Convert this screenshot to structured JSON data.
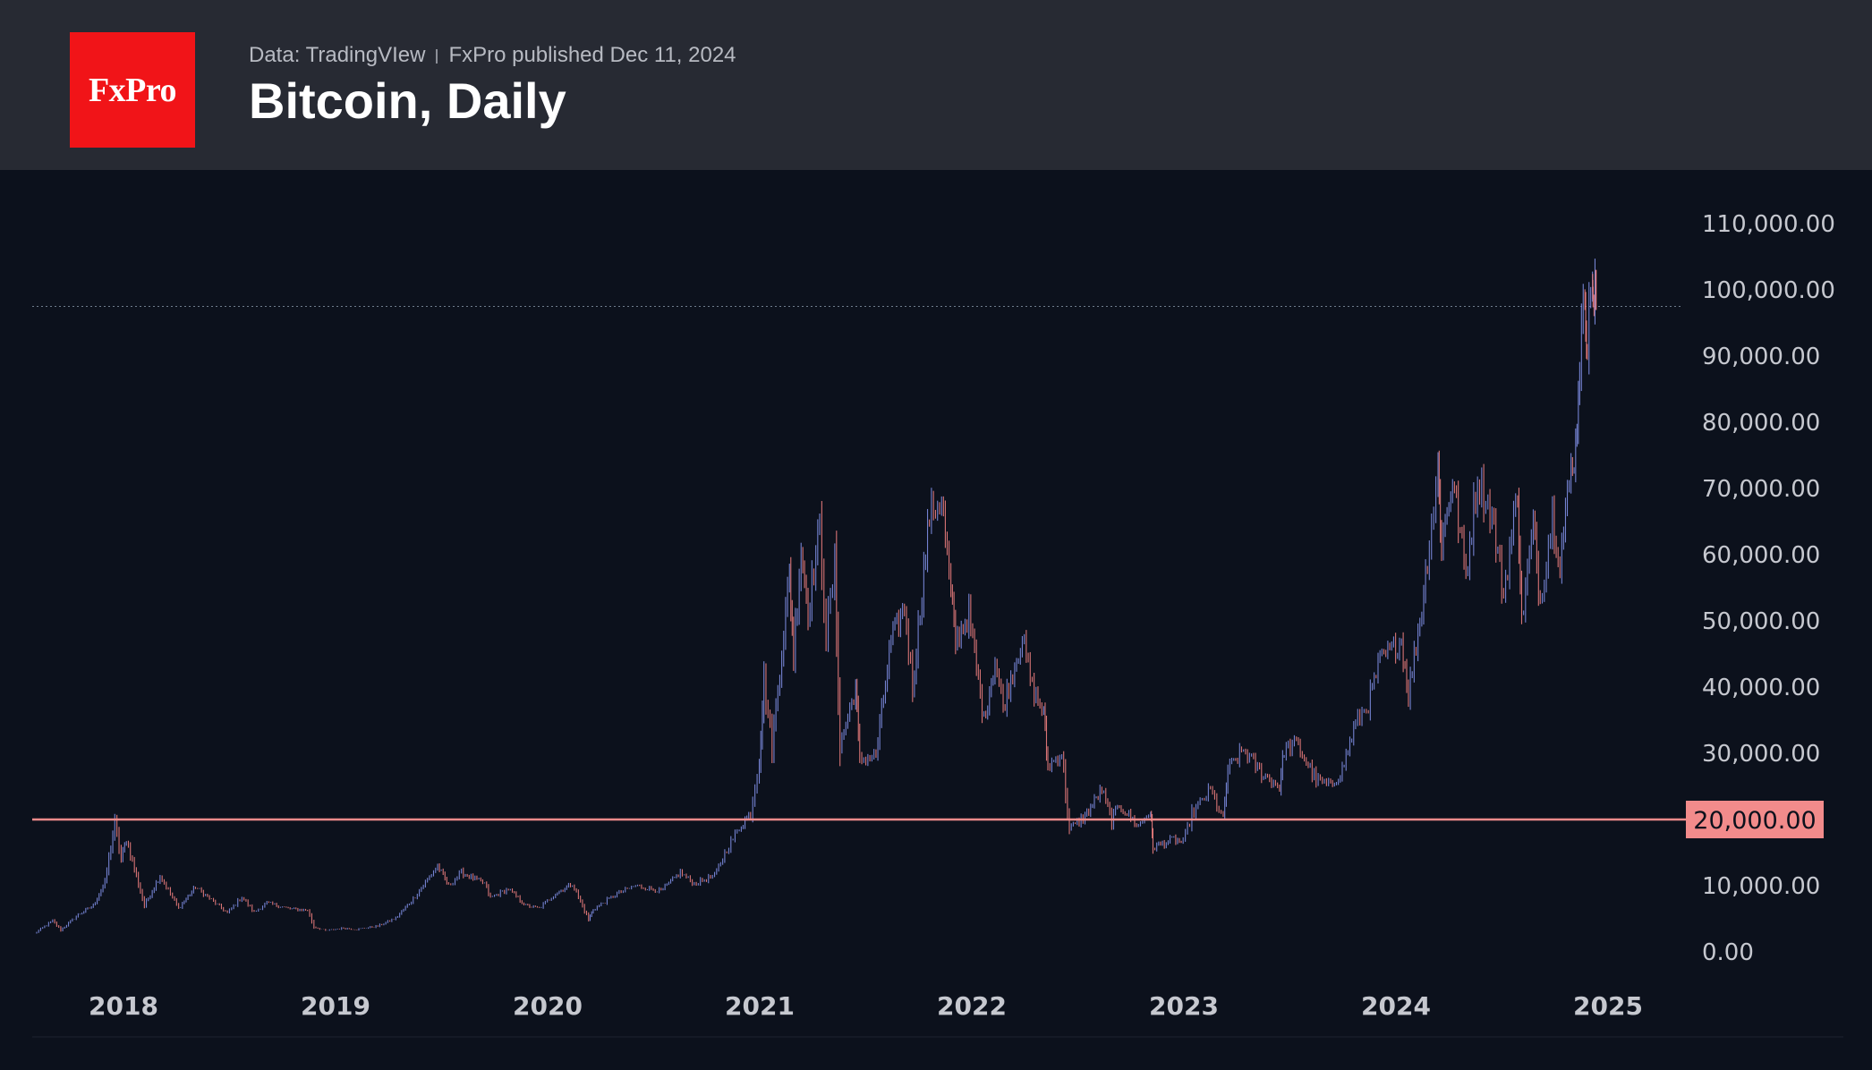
{
  "header": {
    "logo_text": "FxPro",
    "source": "Data: TradingVIew",
    "published": "FxPro published Dec 11, 2024",
    "title": "Bitcoin, Daily"
  },
  "colors": {
    "header_bg": "#272a33",
    "chart_bg": "#0c111c",
    "logo_bg": "#f11418",
    "series_up": "#7f8fe6",
    "series_down": "#f07f80",
    "level_line": "#f28b8b",
    "axis_text": "#c6c8cf"
  },
  "chart_data": {
    "type": "line",
    "title": "Bitcoin, Daily",
    "x_ticks": [
      "2018",
      "2019",
      "2020",
      "2021",
      "2022",
      "2023",
      "2024",
      "2025"
    ],
    "y_ticks": [
      "0.00",
      "10,000.00",
      "20,000.00",
      "30,000.00",
      "40,000.00",
      "50,000.00",
      "60,000.00",
      "70,000.00",
      "80,000.00",
      "90,000.00",
      "100,000.00",
      "110,000.00"
    ],
    "ylim": [
      0,
      120000
    ],
    "grid": false,
    "horizontal_level": {
      "value": 20000,
      "label": "20,000.00"
    },
    "dotted_level": {
      "value": 97500
    },
    "series": [
      {
        "values_note_free": true,
        "points": [
          [
            "2017-08-01",
            2800
          ],
          [
            "2017-09-01",
            4700
          ],
          [
            "2017-09-15",
            3300
          ],
          [
            "2017-10-15",
            5600
          ],
          [
            "2017-11-10",
            7000
          ],
          [
            "2017-11-30",
            10500
          ],
          [
            "2017-12-17",
            19500
          ],
          [
            "2017-12-28",
            14000
          ],
          [
            "2018-01-06",
            17000
          ],
          [
            "2018-02-06",
            7000
          ],
          [
            "2018-03-05",
            11500
          ],
          [
            "2018-04-06",
            6600
          ],
          [
            "2018-05-05",
            9800
          ],
          [
            "2018-06-29",
            5900
          ],
          [
            "2018-07-24",
            8300
          ],
          [
            "2018-08-14",
            6000
          ],
          [
            "2018-09-05",
            7400
          ],
          [
            "2018-10-15",
            6500
          ],
          [
            "2018-11-14",
            6300
          ],
          [
            "2018-11-25",
            3800
          ],
          [
            "2018-12-15",
            3200
          ],
          [
            "2019-01-15",
            3600
          ],
          [
            "2019-02-07",
            3400
          ],
          [
            "2019-03-15",
            3900
          ],
          [
            "2019-04-15",
            5100
          ],
          [
            "2019-05-15",
            8000
          ],
          [
            "2019-06-26",
            13000
          ],
          [
            "2019-07-15",
            10000
          ],
          [
            "2019-08-06",
            12000
          ],
          [
            "2019-09-15",
            10300
          ],
          [
            "2019-09-25",
            8200
          ],
          [
            "2019-10-26",
            9500
          ],
          [
            "2019-11-25",
            7000
          ],
          [
            "2019-12-18",
            6600
          ],
          [
            "2020-01-15",
            8800
          ],
          [
            "2020-02-13",
            10300
          ],
          [
            "2020-03-12",
            4900
          ],
          [
            "2020-03-20",
            6400
          ],
          [
            "2020-04-30",
            8800
          ],
          [
            "2020-06-01",
            10000
          ],
          [
            "2020-07-15",
            9200
          ],
          [
            "2020-08-17",
            12000
          ],
          [
            "2020-09-10",
            10300
          ],
          [
            "2020-10-15",
            11500
          ],
          [
            "2020-11-05",
            15500
          ],
          [
            "2020-11-30",
            19200
          ],
          [
            "2020-12-16",
            21000
          ],
          [
            "2020-12-31",
            29000
          ],
          [
            "2021-01-08",
            41000
          ],
          [
            "2021-01-22",
            31000
          ],
          [
            "2021-02-21",
            57000
          ],
          [
            "2021-02-28",
            45000
          ],
          [
            "2021-03-13",
            61000
          ],
          [
            "2021-03-25",
            51500
          ],
          [
            "2021-04-14",
            64000
          ],
          [
            "2021-04-25",
            48000
          ],
          [
            "2021-05-10",
            58000
          ],
          [
            "2021-05-19",
            31000
          ],
          [
            "2021-06-15",
            40000
          ],
          [
            "2021-06-22",
            29000
          ],
          [
            "2021-07-20",
            29700
          ],
          [
            "2021-08-15",
            47000
          ],
          [
            "2021-09-07",
            52000
          ],
          [
            "2021-09-21",
            40000
          ],
          [
            "2021-10-20",
            66000
          ],
          [
            "2021-11-10",
            68500
          ],
          [
            "2021-11-26",
            54000
          ],
          [
            "2021-12-04",
            47000
          ],
          [
            "2021-12-27",
            51000
          ],
          [
            "2022-01-22",
            35000
          ],
          [
            "2022-02-10",
            44000
          ],
          [
            "2022-02-24",
            37000
          ],
          [
            "2022-03-29",
            47500
          ],
          [
            "2022-04-15",
            40000
          ],
          [
            "2022-05-05",
            36000
          ],
          [
            "2022-05-12",
            28000
          ],
          [
            "2022-06-05",
            30000
          ],
          [
            "2022-06-18",
            18500
          ],
          [
            "2022-07-15",
            20500
          ],
          [
            "2022-08-13",
            24500
          ],
          [
            "2022-08-30",
            19800
          ],
          [
            "2022-09-12",
            22200
          ],
          [
            "2022-10-15",
            19000
          ],
          [
            "2022-11-05",
            21300
          ],
          [
            "2022-11-09",
            15800
          ],
          [
            "2022-12-15",
            17000
          ],
          [
            "2022-12-31",
            16500
          ],
          [
            "2023-01-15",
            20800
          ],
          [
            "2023-02-16",
            24500
          ],
          [
            "2023-03-10",
            20000
          ],
          [
            "2023-03-18",
            27500
          ],
          [
            "2023-04-14",
            30500
          ],
          [
            "2023-05-15",
            27000
          ],
          [
            "2023-06-15",
            25000
          ],
          [
            "2023-06-23",
            30500
          ],
          [
            "2023-07-14",
            31500
          ],
          [
            "2023-08-17",
            26000
          ],
          [
            "2023-09-11",
            25000
          ],
          [
            "2023-10-01",
            27500
          ],
          [
            "2023-10-24",
            34500
          ],
          [
            "2023-11-15",
            37500
          ],
          [
            "2023-12-05",
            44000
          ],
          [
            "2024-01-11",
            47000
          ],
          [
            "2024-01-23",
            39000
          ],
          [
            "2024-02-15",
            52000
          ],
          [
            "2024-02-28",
            62000
          ],
          [
            "2024-03-14",
            73000
          ],
          [
            "2024-03-20",
            61500
          ],
          [
            "2024-04-08",
            71500
          ],
          [
            "2024-05-01",
            57000
          ],
          [
            "2024-05-21",
            71500
          ],
          [
            "2024-06-15",
            66000
          ],
          [
            "2024-07-05",
            54000
          ],
          [
            "2024-07-29",
            69500
          ],
          [
            "2024-08-05",
            50000
          ],
          [
            "2024-08-25",
            64500
          ],
          [
            "2024-09-06",
            53000
          ],
          [
            "2024-09-27",
            66000
          ],
          [
            "2024-10-10",
            59000
          ],
          [
            "2024-10-29",
            73000
          ],
          [
            "2024-11-06",
            76000
          ],
          [
            "2024-11-13",
            90000
          ],
          [
            "2024-11-22",
            99500
          ],
          [
            "2024-11-26",
            91500
          ],
          [
            "2024-12-05",
            103700
          ],
          [
            "2024-12-06",
            96000
          ],
          [
            "2024-12-11",
            101000
          ]
        ]
      }
    ]
  }
}
